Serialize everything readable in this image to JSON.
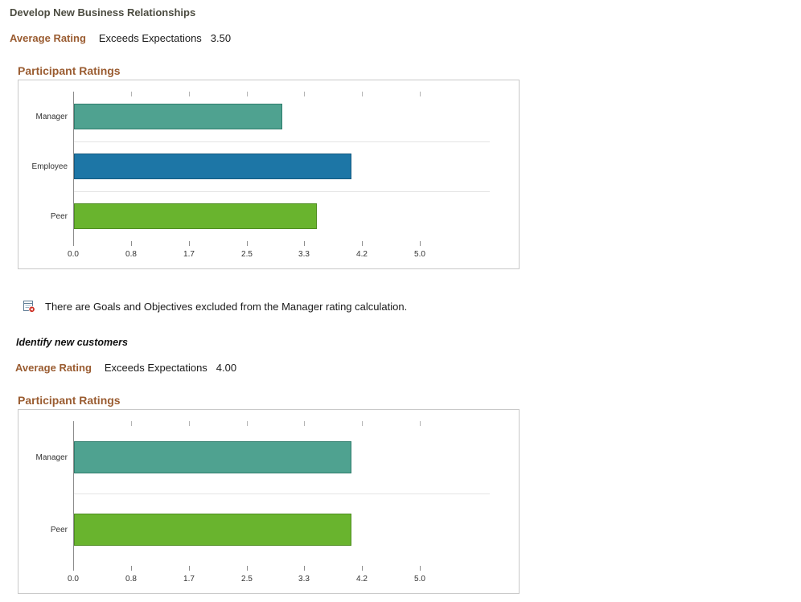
{
  "goal1": {
    "title": "Develop New Business Relationships",
    "average_rating_label": "Average Rating",
    "average_rating_text": "Exceeds Expectations",
    "average_rating_value": "3.50",
    "chart_heading": "Participant Ratings"
  },
  "notice": {
    "icon": "excluded-items-icon",
    "text": "There are Goals and Objectives excluded from the Manager rating calculation."
  },
  "goal2": {
    "title": "Identify new customers",
    "average_rating_label": "Average Rating",
    "average_rating_text": "Exceeds Expectations",
    "average_rating_value": "4.00",
    "chart_heading": "Participant Ratings"
  },
  "colors": {
    "heading_brown": "#9a5c31",
    "manager_bar": "#4fa290",
    "employee_bar": "#1d76a6",
    "peer_bar": "#69b42e",
    "chart_border": "#c9c9c9",
    "notice_icon_red": "#cc2a1e"
  },
  "chart_data": [
    {
      "type": "bar",
      "orientation": "horizontal",
      "title": "Participant Ratings",
      "categories": [
        "Manager",
        "Employee",
        "Peer"
      ],
      "values": [
        3.0,
        4.0,
        3.5
      ],
      "colors": [
        "#4fa290",
        "#1d76a6",
        "#69b42e"
      ],
      "border_colors": [
        "#2f7c6c",
        "#14597f",
        "#4e8c20"
      ],
      "xlim": [
        0,
        5
      ],
      "xticks": [
        "0.0",
        "0.8",
        "1.7",
        "2.5",
        "3.3",
        "4.2",
        "5.0"
      ],
      "grid": "horizontal-row-separators",
      "legend": "none"
    },
    {
      "type": "bar",
      "orientation": "horizontal",
      "title": "Participant Ratings",
      "categories": [
        "Manager",
        "Peer"
      ],
      "values": [
        4.0,
        4.0
      ],
      "colors": [
        "#4fa290",
        "#69b42e"
      ],
      "border_colors": [
        "#2f7c6c",
        "#4e8c20"
      ],
      "xlim": [
        0,
        5
      ],
      "xticks": [
        "0.0",
        "0.8",
        "1.7",
        "2.5",
        "3.3",
        "4.2",
        "5.0"
      ],
      "grid": "horizontal-row-separators",
      "legend": "none"
    }
  ]
}
